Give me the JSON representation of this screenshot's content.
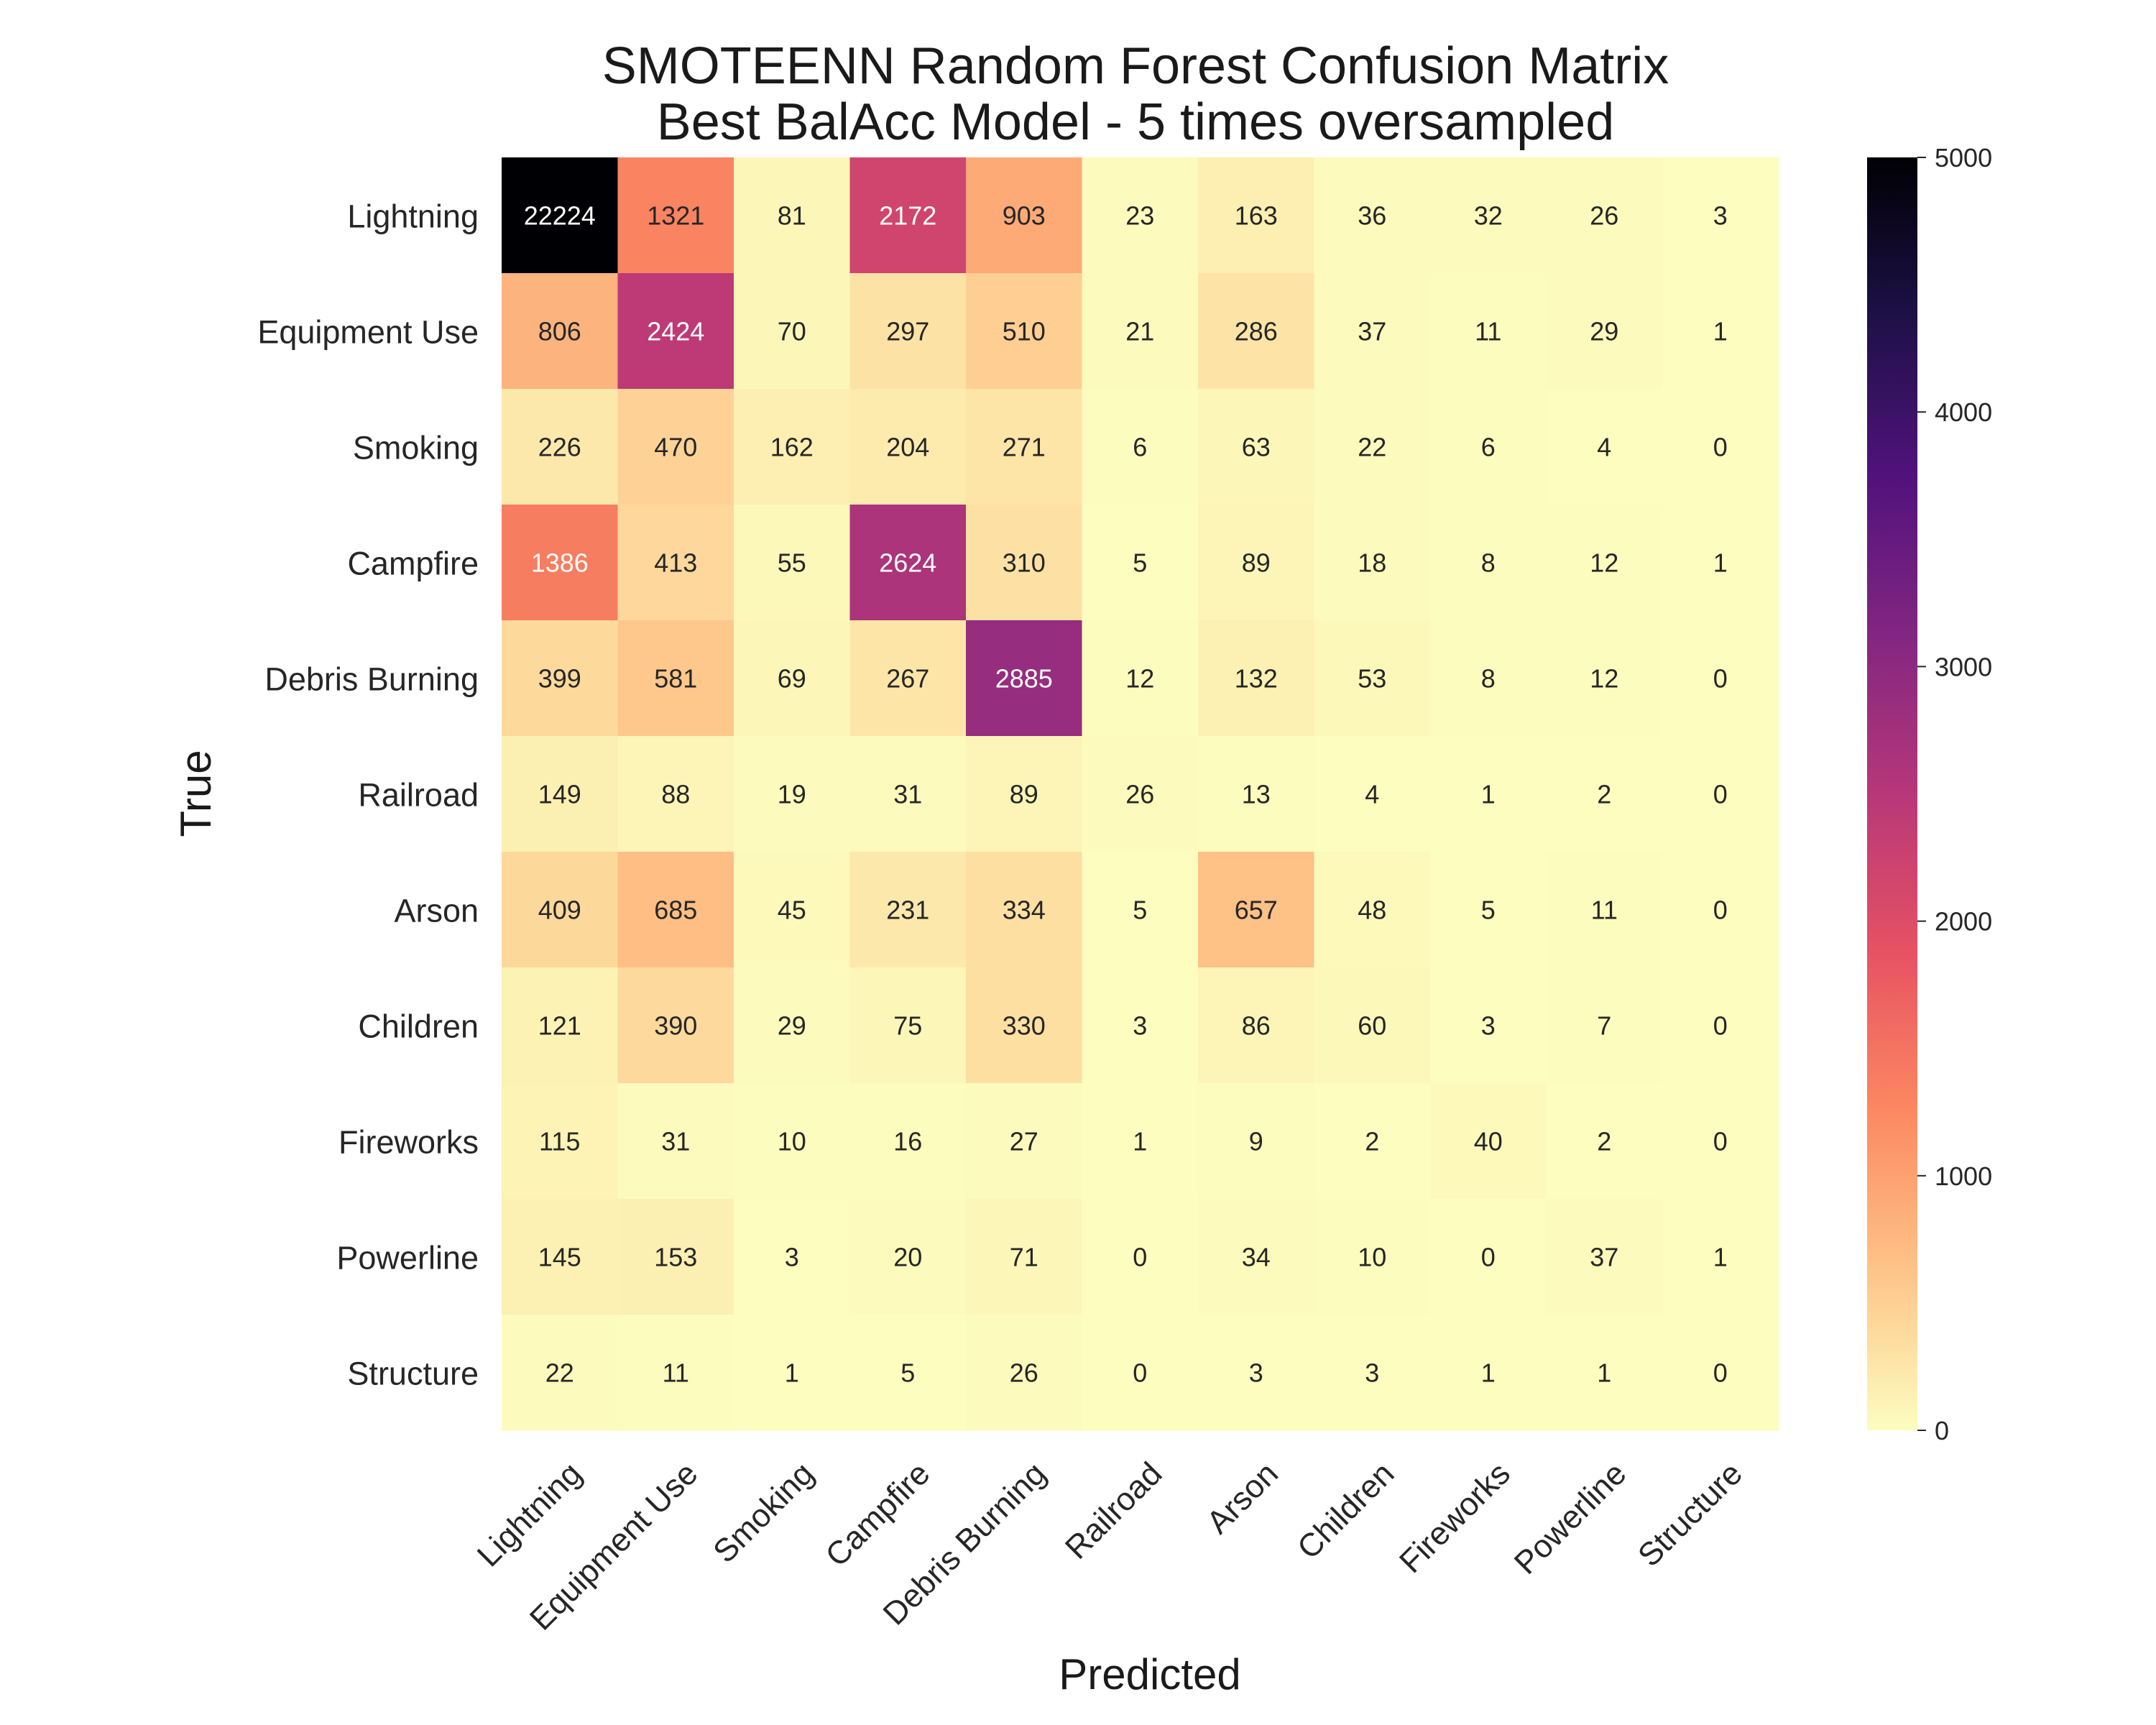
{
  "chart_data": {
    "type": "heatmap",
    "title": "SMOTEENN Random Forest Confusion Matrix",
    "subtitle": "Best BalAcc Model - 5 times oversampled",
    "xlabel": "Predicted",
    "ylabel": "True",
    "row_labels": [
      "Lightning",
      "Equipment Use",
      "Smoking",
      "Campfire",
      "Debris Burning",
      "Railroad",
      "Arson",
      "Children",
      "Fireworks",
      "Powerline",
      "Structure"
    ],
    "col_labels": [
      "Lightning",
      "Equipment Use",
      "Smoking",
      "Campfire",
      "Debris Burning",
      "Railroad",
      "Arson",
      "Children",
      "Fireworks",
      "Powerline",
      "Structure"
    ],
    "values": [
      [
        22224,
        1321,
        81,
        2172,
        903,
        23,
        163,
        36,
        32,
        26,
        3
      ],
      [
        806,
        2424,
        70,
        297,
        510,
        21,
        286,
        37,
        11,
        29,
        1
      ],
      [
        226,
        470,
        162,
        204,
        271,
        6,
        63,
        22,
        6,
        4,
        0
      ],
      [
        1386,
        413,
        55,
        2624,
        310,
        5,
        89,
        18,
        8,
        12,
        1
      ],
      [
        399,
        581,
        69,
        267,
        2885,
        12,
        132,
        53,
        8,
        12,
        0
      ],
      [
        149,
        88,
        19,
        31,
        89,
        26,
        13,
        4,
        1,
        2,
        0
      ],
      [
        409,
        685,
        45,
        231,
        334,
        5,
        657,
        48,
        5,
        11,
        0
      ],
      [
        121,
        390,
        29,
        75,
        330,
        3,
        86,
        60,
        3,
        7,
        0
      ],
      [
        115,
        31,
        10,
        16,
        27,
        1,
        9,
        2,
        40,
        2,
        0
      ],
      [
        145,
        153,
        3,
        20,
        71,
        0,
        34,
        10,
        0,
        37,
        1
      ],
      [
        22,
        11,
        1,
        5,
        26,
        0,
        3,
        3,
        1,
        1,
        0
      ]
    ],
    "color_range": [
      0,
      5000
    ],
    "colormap": "magma_r",
    "colorbar_ticks": [
      "0",
      "1000",
      "2000",
      "3000",
      "4000",
      "5000"
    ]
  }
}
